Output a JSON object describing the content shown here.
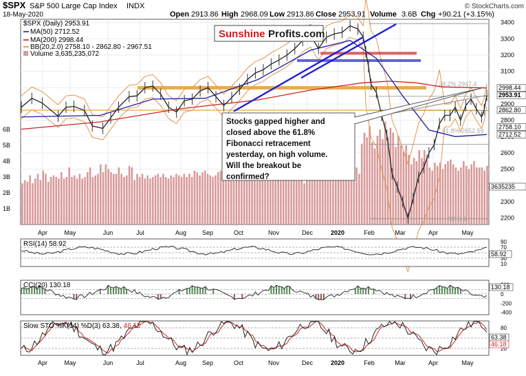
{
  "header": {
    "symbol": "$SPX",
    "name": "S&P 500 Large Cap Index",
    "exchange": "INDX",
    "date": "18-May-2020",
    "open_label": "Open",
    "open": "2913.86",
    "high_label": "High",
    "high": "2968.09",
    "low_label": "Low",
    "low": "2913.86",
    "close_label": "Close",
    "close": "2953.91",
    "volume_label": "Volume",
    "volume": "3.6B",
    "chg_label": "Chg",
    "chg": "+90.21 (+3.15%)",
    "copyright": "© StockCharts.com"
  },
  "legend": [
    {
      "text": "$SPX (Daily) 2953.91",
      "color": "#000000"
    },
    {
      "text": "MA(50) 2712.52",
      "color": "#1b1ba8"
    },
    {
      "text": "MA(200) 2998.44",
      "color": "#cc2222"
    },
    {
      "text": "BB(20,2.0) 2758.10 - 2862.80 - 2967.51",
      "color": "#e08a3c"
    },
    {
      "text": "Volume 3,635,235,072",
      "color": "#666666"
    }
  ],
  "watermark": {
    "part1": "Sunshine",
    "part2": "Profits.com",
    "color1": "#d11a1a",
    "color2": "#1a1a1a"
  },
  "annotation": "Stocks gapped higher and closed above the 61.8% Fibonacci retracement yesterday, on high volume. Will the breakout be confirmed?",
  "annotation_lines": [
    "Stocks gapped higher and",
    "closed above the 61.8%",
    "Fibonacci retracement",
    "yesterday, on high volume.",
    "Will the breakout be",
    "confirmed?"
  ],
  "fib_labels": [
    "38.2% 2947.4",
    "61.8% 2652.59",
    "2195.4"
  ],
  "price_axis": [
    "3400",
    "3300",
    "3200",
    "3100",
    "3000",
    "2900",
    "2800",
    "2700",
    "2600",
    "2500",
    "2400",
    "2300",
    "2200"
  ],
  "volume_axis": [
    "6B",
    "5B",
    "4B",
    "3B",
    "2B",
    "1B"
  ],
  "price_tags": [
    {
      "label": "2998.44",
      "value": 2998.44,
      "style": "plain"
    },
    {
      "label": "2953.91",
      "value": 2953.91,
      "style": "bold"
    },
    {
      "label": "2862.80",
      "value": 2862.8,
      "style": "plain"
    },
    {
      "label": "2758.10",
      "value": 2758.1,
      "style": "plain"
    },
    {
      "label": "2712.52",
      "value": 2712.52,
      "style": "plain"
    }
  ],
  "volume_tag": "3635235",
  "months": [
    "Apr",
    "May",
    "Jun",
    "Jul",
    "Aug",
    "Sep",
    "Oct",
    "Nov",
    "Dec",
    "2020",
    "Feb",
    "Mar",
    "Apr",
    "May"
  ],
  "rsi": {
    "title": "RSI(14) 58.92",
    "axis": [
      "90",
      "70",
      "50",
      "30",
      "10"
    ],
    "tag": "58.92"
  },
  "cci": {
    "title": "CCI(20) 130.18",
    "axis": [
      "200",
      "0",
      "-200",
      "-400"
    ],
    "tag": "130.18"
  },
  "sto": {
    "title": "Slow STO %K(14) %D(3) 63.38,",
    "title_red": "46.18",
    "axis": [
      "80",
      "20"
    ],
    "tag_k": "63.38",
    "tag_d": "46.18"
  },
  "colors": {
    "price": "#222222",
    "ma50": "#1b1ba8",
    "ma200": "#cc2222",
    "bb": "#e08a3c",
    "volume": "#d89a9a",
    "resistance": "#e8a33c",
    "trendline": "#1f1fd6"
  },
  "chart_data": {
    "type": "line",
    "title": "$SPX S&P 500 Large Cap Index (Daily)",
    "x": [
      "Apr-19",
      "May-19",
      "Jun-19",
      "Jul-19",
      "Aug-19",
      "Sep-19",
      "Oct-19",
      "Nov-19",
      "Dec-19",
      "Jan-20",
      "Feb-20",
      "Mar-20",
      "Apr-20",
      "May-20"
    ],
    "ylim": [
      2160,
      3420
    ],
    "series": [
      {
        "name": "$SPX",
        "values": [
          [
            0,
            2880
          ],
          [
            4,
            2935
          ],
          [
            8,
            2905
          ],
          [
            14,
            2825
          ],
          [
            17,
            2880
          ],
          [
            20,
            2885
          ],
          [
            24,
            2860
          ],
          [
            27,
            2765
          ],
          [
            31,
            2750
          ],
          [
            34,
            2815
          ],
          [
            37,
            2880
          ],
          [
            41,
            2945
          ],
          [
            44,
            2950
          ],
          [
            47,
            3000
          ],
          [
            50,
            3010
          ],
          [
            53,
            2960
          ],
          [
            56,
            2880
          ],
          [
            59,
            2850
          ],
          [
            62,
            2920
          ],
          [
            65,
            2930
          ],
          [
            68,
            2980
          ],
          [
            71,
            3000
          ],
          [
            74,
            2945
          ],
          [
            77,
            2890
          ],
          [
            80,
            2940
          ],
          [
            83,
            2990
          ],
          [
            86,
            3050
          ],
          [
            89,
            3090
          ],
          [
            92,
            3110
          ],
          [
            95,
            3145
          ],
          [
            98,
            3170
          ],
          [
            101,
            3200
          ],
          [
            104,
            3240
          ],
          [
            107,
            3290
          ],
          [
            110,
            3320
          ],
          [
            113,
            3240
          ],
          [
            116,
            3310
          ],
          [
            119,
            3330
          ],
          [
            122,
            3340
          ],
          [
            125,
            3380
          ],
          [
            128,
            3360
          ],
          [
            130,
            3310
          ],
          [
            131,
            3220
          ],
          [
            132,
            3130
          ],
          [
            133,
            3020
          ],
          [
            135,
            2970
          ],
          [
            137,
            2830
          ],
          [
            139,
            2710
          ],
          [
            141,
            2470
          ],
          [
            143,
            2390
          ],
          [
            145,
            2300
          ],
          [
            147,
            2200
          ],
          [
            149,
            2320
          ],
          [
            151,
            2450
          ],
          [
            153,
            2510
          ],
          [
            155,
            2600
          ],
          [
            157,
            2650
          ],
          [
            159,
            2780
          ],
          [
            161,
            2830
          ],
          [
            163,
            2830
          ],
          [
            165,
            2880
          ],
          [
            167,
            2800
          ],
          [
            169,
            2890
          ],
          [
            171,
            2930
          ],
          [
            173,
            2870
          ],
          [
            175,
            2820
          ],
          [
            176,
            2865
          ],
          [
            177,
            2954
          ]
        ]
      },
      {
        "name": "MA(50)",
        "values": [
          [
            0,
            2820
          ],
          [
            30,
            2830
          ],
          [
            50,
            2930
          ],
          [
            70,
            2935
          ],
          [
            90,
            3050
          ],
          [
            110,
            3230
          ],
          [
            125,
            3290
          ],
          [
            135,
            3180
          ],
          [
            145,
            2950
          ],
          [
            155,
            2740
          ],
          [
            165,
            2700
          ],
          [
            177,
            2712.52
          ]
        ]
      },
      {
        "name": "MA(200)",
        "values": [
          [
            0,
            2745
          ],
          [
            30,
            2790
          ],
          [
            60,
            2870
          ],
          [
            90,
            2925
          ],
          [
            110,
            2985
          ],
          [
            130,
            3030
          ],
          [
            140,
            3040
          ],
          [
            150,
            3030
          ],
          [
            160,
            3005
          ],
          [
            177,
            2998.44
          ]
        ]
      }
    ],
    "volume_values": [
      2.6,
      2.8,
      2.7,
      3.1,
      2.6,
      2.9,
      3.2,
      2.8,
      3.4,
      3.2,
      2.7,
      3.0,
      3.1,
      3.0,
      2.9,
      3.3,
      2.9,
      3.0,
      3.6,
      3.0,
      3.1,
      2.9,
      3.2,
      2.9,
      3.0,
      3.3,
      3.6,
      3.0,
      3.1,
      3.2,
      3.8,
      3.3,
      3.8,
      3.5,
      3.3,
      3.2,
      3.2,
      3.6,
      3.2,
      3.0,
      3.1,
      3.7,
      3.6,
      2.8,
      3.2,
      3.0,
      3.2,
      2.9,
      3.1,
      2.9,
      3.0,
      3.1,
      3.2,
      3.0,
      3.2,
      3.0,
      2.9,
      3.1,
      3.0,
      3.2,
      3.1,
      3.0,
      3.2,
      3.0,
      3.2,
      3.0,
      3.4,
      3.3,
      3.1,
      3.3,
      3.4,
      3.2,
      3.1,
      3.0,
      3.1,
      3.3,
      3.4,
      3.2,
      3.2,
      3.1,
      2.9,
      3.2,
      3.1,
      3.1,
      3.0,
      3.3,
      3.4,
      3.2,
      3.2,
      3.0,
      3.0,
      3.2,
      3.0,
      2.9,
      3.3,
      3.0,
      3.2,
      3.1,
      3.0,
      3.3,
      3.0,
      2.8,
      3.0,
      3.3,
      3.1,
      3.1,
      3.0,
      2.8,
      2.6,
      3.1,
      3.0,
      3.1,
      3.1,
      3.2,
      3.4,
      3.3,
      3.0,
      3.1,
      2.8,
      3.3,
      3.1,
      3.3,
      3.4,
      3.7,
      3.1,
      3.6,
      3.2,
      4.0,
      3.6,
      3.2,
      5.1,
      5.8,
      5.5,
      6.2,
      5.2,
      4.8,
      5.6,
      6.0,
      5.4,
      6.5,
      5.5,
      6.1,
      5.8,
      4.9,
      5.6,
      5.0,
      4.6,
      5.0,
      4.4,
      3.8,
      4.2,
      4.0,
      4.7,
      4.2,
      4.7,
      4.4,
      3.6,
      3.4,
      3.9,
      3.7,
      3.9,
      3.5,
      3.8,
      4.0,
      4.1,
      3.8,
      3.6,
      3.4,
      3.6,
      4.0,
      3.7,
      3.5,
      3.8,
      4.0,
      3.6,
      3.6,
      3.6,
      3.4,
      3.7
    ]
  }
}
